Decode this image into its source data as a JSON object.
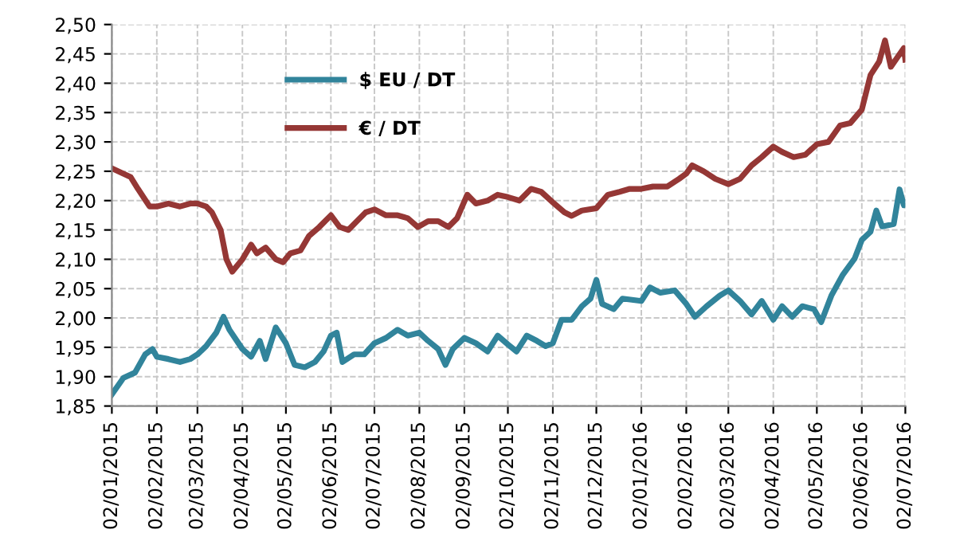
{
  "chart_data": {
    "type": "line",
    "xlim": [
      "2015-01-02",
      "2016-07-02"
    ],
    "xticks": [
      {
        "value": "2015-01-02",
        "label": "02/01/2015"
      },
      {
        "value": "2015-02-02",
        "label": "02/02/2015"
      },
      {
        "value": "2015-03-02",
        "label": "02/03/2015"
      },
      {
        "value": "2015-04-02",
        "label": "02/04/2015"
      },
      {
        "value": "2015-05-02",
        "label": "02/05/2015"
      },
      {
        "value": "2015-06-02",
        "label": "02/06/2015"
      },
      {
        "value": "2015-07-02",
        "label": "02/07/2015"
      },
      {
        "value": "2015-08-02",
        "label": "02/08/2015"
      },
      {
        "value": "2015-09-02",
        "label": "02/09/2015"
      },
      {
        "value": "2015-10-02",
        "label": "02/10/2015"
      },
      {
        "value": "2015-11-02",
        "label": "02/11/2015"
      },
      {
        "value": "2015-12-02",
        "label": "02/12/2015"
      },
      {
        "value": "2016-01-02",
        "label": "02/01/2016"
      },
      {
        "value": "2016-02-02",
        "label": "02/02/2016"
      },
      {
        "value": "2016-03-02",
        "label": "02/03/2016"
      },
      {
        "value": "2016-04-02",
        "label": "02/04/2016"
      },
      {
        "value": "2016-05-02",
        "label": "02/05/2016"
      },
      {
        "value": "2016-06-02",
        "label": "02/06/2016"
      },
      {
        "value": "2016-07-02",
        "label": "02/07/2016"
      }
    ],
    "ylim": [
      1.85,
      2.5
    ],
    "yticks": [
      {
        "value": 1.85,
        "label": "1,85"
      },
      {
        "value": 1.9,
        "label": "1,90"
      },
      {
        "value": 1.95,
        "label": "1,95"
      },
      {
        "value": 2.0,
        "label": "2,00"
      },
      {
        "value": 2.05,
        "label": "2,05"
      },
      {
        "value": 2.1,
        "label": "2,10"
      },
      {
        "value": 2.15,
        "label": "2,15"
      },
      {
        "value": 2.2,
        "label": "2,20"
      },
      {
        "value": 2.25,
        "label": "2,25"
      },
      {
        "value": 2.3,
        "label": "2,30"
      },
      {
        "value": 2.35,
        "label": "2,35"
      },
      {
        "value": 2.4,
        "label": "2,40"
      },
      {
        "value": 2.45,
        "label": "2,45"
      },
      {
        "value": 2.5,
        "label": "2,50"
      }
    ],
    "grid": true,
    "legend": "top left",
    "marker": "none",
    "line_style": "solid",
    "series": [
      {
        "name": "$ EU / DT",
        "color": "#31849b",
        "x": [
          "2015-01-02",
          "2015-01-10",
          "2015-01-18",
          "2015-01-25",
          "2015-01-30",
          "2015-02-02",
          "2015-02-10",
          "2015-02-18",
          "2015-02-25",
          "2015-03-02",
          "2015-03-08",
          "2015-03-15",
          "2015-03-20",
          "2015-03-24",
          "2015-04-02",
          "2015-04-08",
          "2015-04-14",
          "2015-04-18",
          "2015-04-25",
          "2015-05-02",
          "2015-05-08",
          "2015-05-15",
          "2015-05-22",
          "2015-05-28",
          "2015-06-02",
          "2015-06-06",
          "2015-06-10",
          "2015-06-18",
          "2015-06-25",
          "2015-07-02",
          "2015-07-10",
          "2015-07-18",
          "2015-07-25",
          "2015-08-02",
          "2015-08-08",
          "2015-08-15",
          "2015-08-20",
          "2015-08-25",
          "2015-09-02",
          "2015-09-10",
          "2015-09-18",
          "2015-09-25",
          "2015-10-02",
          "2015-10-08",
          "2015-10-15",
          "2015-10-22",
          "2015-10-28",
          "2015-11-02",
          "2015-11-08",
          "2015-11-15",
          "2015-11-22",
          "2015-11-28",
          "2015-12-02",
          "2015-12-06",
          "2015-12-14",
          "2015-12-20",
          "2016-01-02",
          "2016-01-08",
          "2016-01-15",
          "2016-01-25",
          "2016-02-02",
          "2016-02-08",
          "2016-02-16",
          "2016-02-25",
          "2016-03-02",
          "2016-03-10",
          "2016-03-18",
          "2016-03-25",
          "2016-04-02",
          "2016-04-08",
          "2016-04-15",
          "2016-04-22",
          "2016-04-30",
          "2016-05-05",
          "2016-05-12",
          "2016-05-20",
          "2016-05-28",
          "2016-06-02",
          "2016-06-08",
          "2016-06-12",
          "2016-06-16",
          "2016-06-24",
          "2016-06-28",
          "2016-07-01",
          "2016-07-02"
        ],
        "values": [
          1.87,
          1.898,
          1.907,
          1.938,
          1.947,
          1.934,
          1.93,
          1.925,
          1.93,
          1.938,
          1.952,
          1.975,
          2.002,
          1.98,
          1.947,
          1.934,
          1.961,
          1.93,
          1.984,
          1.957,
          1.92,
          1.916,
          1.925,
          1.943,
          1.97,
          1.975,
          1.925,
          1.938,
          1.938,
          1.957,
          1.966,
          1.98,
          1.97,
          1.975,
          1.961,
          1.947,
          1.92,
          1.947,
          1.966,
          1.957,
          1.943,
          1.97,
          1.955,
          1.943,
          1.97,
          1.961,
          1.952,
          1.957,
          1.997,
          1.997,
          2.02,
          2.033,
          2.065,
          2.024,
          2.015,
          2.033,
          2.029,
          2.052,
          2.043,
          2.047,
          2.024,
          2.002,
          2.02,
          2.038,
          2.047,
          2.029,
          2.006,
          2.029,
          1.997,
          2.02,
          2.002,
          2.02,
          2.015,
          1.993,
          2.038,
          2.074,
          2.101,
          2.133,
          2.147,
          2.183,
          2.156,
          2.16,
          2.219,
          2.192,
          2.197
        ]
      },
      {
        "name": "€ / DT",
        "color": "#953735",
        "x": [
          "2015-01-02",
          "2015-01-15",
          "2015-01-20",
          "2015-01-28",
          "2015-02-02",
          "2015-02-10",
          "2015-02-18",
          "2015-02-25",
          "2015-03-02",
          "2015-03-08",
          "2015-03-12",
          "2015-03-18",
          "2015-03-22",
          "2015-03-26",
          "2015-04-02",
          "2015-04-08",
          "2015-04-12",
          "2015-04-18",
          "2015-04-25",
          "2015-04-30",
          "2015-05-05",
          "2015-05-12",
          "2015-05-18",
          "2015-05-25",
          "2015-06-02",
          "2015-06-08",
          "2015-06-14",
          "2015-06-20",
          "2015-06-26",
          "2015-07-02",
          "2015-07-10",
          "2015-07-18",
          "2015-07-25",
          "2015-08-01",
          "2015-08-08",
          "2015-08-15",
          "2015-08-22",
          "2015-08-28",
          "2015-09-04",
          "2015-09-10",
          "2015-09-18",
          "2015-09-25",
          "2015-10-02",
          "2015-10-10",
          "2015-10-18",
          "2015-10-25",
          "2015-11-02",
          "2015-11-10",
          "2015-11-15",
          "2015-11-22",
          "2015-12-02",
          "2015-12-10",
          "2015-12-18",
          "2015-12-25",
          "2016-01-02",
          "2016-01-10",
          "2016-01-20",
          "2016-01-28",
          "2016-02-02",
          "2016-02-06",
          "2016-02-14",
          "2016-02-22",
          "2016-03-02",
          "2016-03-10",
          "2016-03-18",
          "2016-03-25",
          "2016-04-02",
          "2016-04-08",
          "2016-04-16",
          "2016-04-24",
          "2016-05-02",
          "2016-05-10",
          "2016-05-18",
          "2016-05-25",
          "2016-06-02",
          "2016-06-08",
          "2016-06-14",
          "2016-06-18",
          "2016-06-22",
          "2016-07-01",
          "2016-07-02"
        ],
        "values": [
          2.255,
          2.24,
          2.22,
          2.19,
          2.19,
          2.195,
          2.19,
          2.195,
          2.195,
          2.19,
          2.18,
          2.15,
          2.1,
          2.079,
          2.1,
          2.125,
          2.11,
          2.12,
          2.1,
          2.095,
          2.11,
          2.115,
          2.14,
          2.155,
          2.175,
          2.155,
          2.15,
          2.165,
          2.18,
          2.185,
          2.175,
          2.175,
          2.17,
          2.155,
          2.165,
          2.165,
          2.155,
          2.17,
          2.21,
          2.195,
          2.2,
          2.21,
          2.206,
          2.2,
          2.22,
          2.215,
          2.197,
          2.18,
          2.174,
          2.183,
          2.187,
          2.21,
          2.215,
          2.22,
          2.22,
          2.224,
          2.224,
          2.237,
          2.246,
          2.26,
          2.25,
          2.237,
          2.228,
          2.237,
          2.26,
          2.274,
          2.292,
          2.283,
          2.274,
          2.278,
          2.296,
          2.3,
          2.328,
          2.332,
          2.355,
          2.414,
          2.437,
          2.473,
          2.428,
          2.46,
          2.44
        ]
      }
    ]
  }
}
